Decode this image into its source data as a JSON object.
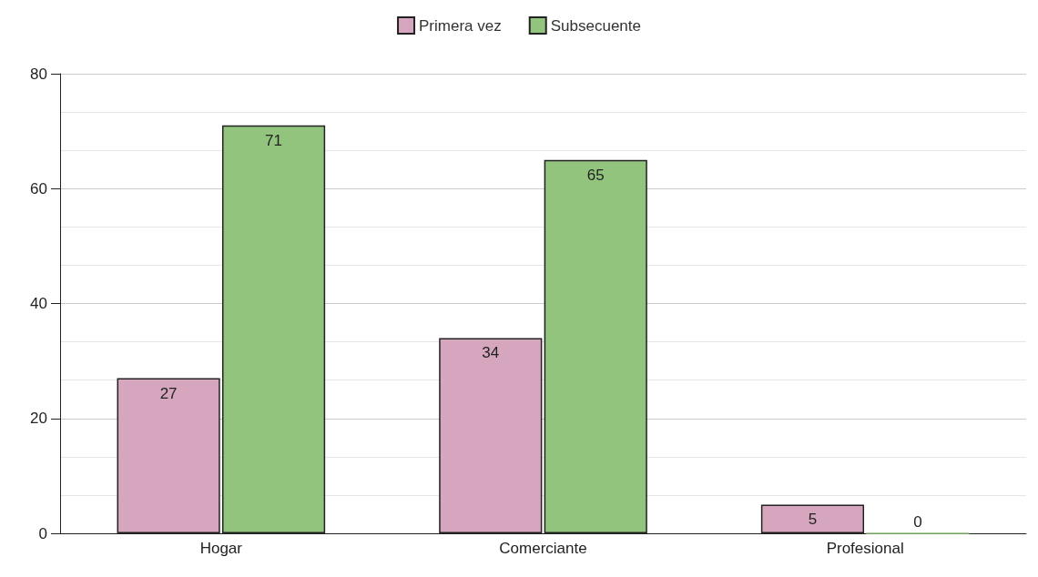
{
  "chart_data": {
    "type": "bar",
    "categories": [
      "Hogar",
      "Comerciante",
      "Profesional"
    ],
    "series": [
      {
        "name": "Primera vez",
        "color": "#d5a6bd",
        "values": [
          27,
          34,
          5
        ]
      },
      {
        "name": "Subsecuente",
        "color": "#93c47d",
        "values": [
          71,
          65,
          0
        ]
      }
    ],
    "ylim": [
      0,
      80
    ],
    "yticks": [
      0,
      20,
      40,
      60,
      80
    ],
    "grid": true,
    "legend": "top",
    "data_labels": true
  }
}
